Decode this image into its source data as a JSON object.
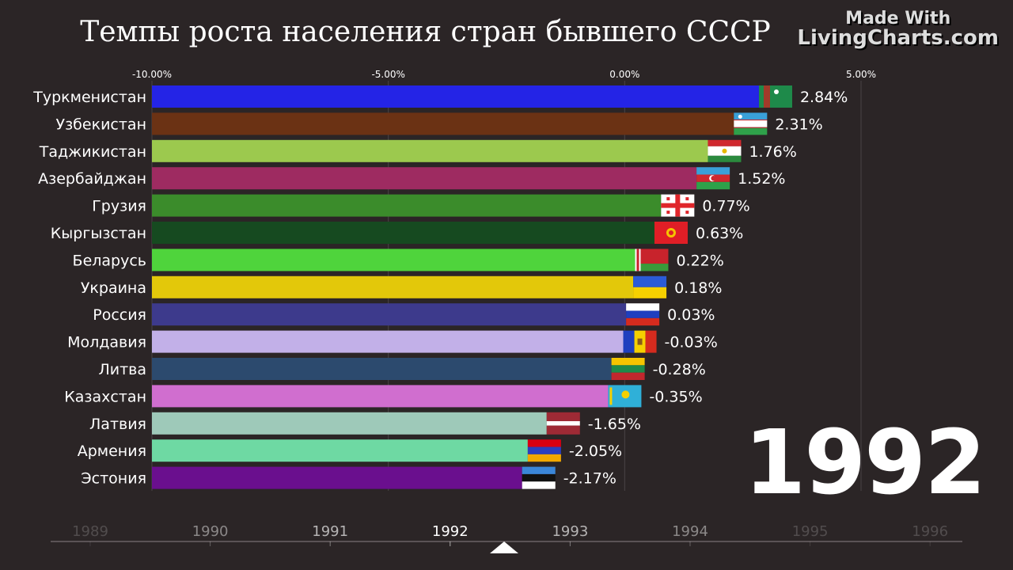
{
  "header": {
    "title": "Темпы роста населения стран бывшего СССР",
    "watermark_line1": "Made With",
    "watermark_line2": "LivingCharts.com"
  },
  "year_label": "1992",
  "chart_data": {
    "type": "bar",
    "orientation": "horizontal",
    "title": "Темпы роста населения стран бывшего СССР",
    "xlim": [
      -10,
      5
    ],
    "x_ticks": [
      -10,
      -5,
      0,
      5
    ],
    "x_tick_labels": [
      "-10.00%",
      "-5.00%",
      "0.00%",
      "5.00%"
    ],
    "categories": [
      "Туркменистан",
      "Узбекистан",
      "Таджикистан",
      "Азербайджан",
      "Грузия",
      "Кыргызстан",
      "Беларусь",
      "Украина",
      "Россия",
      "Молдавия",
      "Литва",
      "Казахстан",
      "Латвия",
      "Армения",
      "Эстония"
    ],
    "values": [
      2.84,
      2.31,
      1.76,
      1.52,
      0.77,
      0.63,
      0.22,
      0.18,
      0.03,
      -0.03,
      -0.28,
      -0.35,
      -1.65,
      -2.05,
      -2.17
    ],
    "value_labels": [
      "2.84%",
      "2.31%",
      "1.76%",
      "1.52%",
      "0.77%",
      "0.63%",
      "0.22%",
      "0.18%",
      "0.03%",
      "-0.03%",
      "-0.28%",
      "-0.35%",
      "-1.65%",
      "-2.05%",
      "-2.17%"
    ],
    "colors": [
      "#2424e6",
      "#6b3214",
      "#9cc94e",
      "#9e2b61",
      "#3b8c2b",
      "#164a20",
      "#4fd43c",
      "#e3c80a",
      "#3d3a8c",
      "#c2b0e8",
      "#2c4a6e",
      "#d06ecf",
      "#9ec9b9",
      "#6ed9a3",
      "#6a0f8e"
    ],
    "flags": [
      "flag-turkmenistan",
      "flag-uzbekistan",
      "flag-tajikistan",
      "flag-azerbaijan",
      "flag-georgia",
      "flag-kyrgyzstan",
      "flag-belarus",
      "flag-ukraine",
      "flag-russia",
      "flag-moldova",
      "flag-lithuania",
      "flag-kazakhstan",
      "flag-latvia",
      "flag-armenia",
      "flag-estonia"
    ]
  },
  "timeline": {
    "years": [
      "1989",
      "1990",
      "1991",
      "1992",
      "1993",
      "1994",
      "1995",
      "1996"
    ],
    "current_year": 1992,
    "position": 1992.45
  }
}
